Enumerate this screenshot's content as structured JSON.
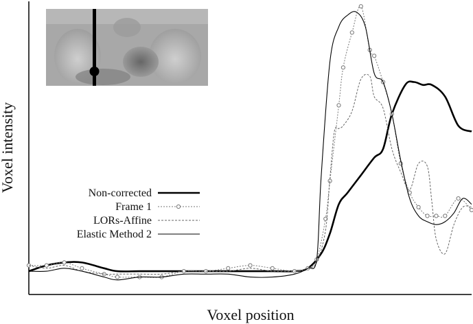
{
  "chart_data": {
    "type": "line",
    "title": "",
    "xlabel": "Voxel position",
    "ylabel": "Voxel intensity",
    "xlim": [
      0,
      100
    ],
    "ylim": [
      0,
      100
    ],
    "grid": false,
    "legend_position": "center-left",
    "inset": "coronal scan image with vertical profile line",
    "series": [
      {
        "name": "Non-corrected",
        "style": "thick-solid",
        "color": "#000000",
        "x": [
          0,
          4,
          8,
          12,
          17,
          20,
          25,
          30,
          35,
          40,
          45,
          50,
          55,
          60,
          63,
          66,
          68,
          70,
          72,
          75,
          78,
          80,
          82,
          85,
          87,
          89,
          91,
          94,
          97,
          100
        ],
        "y": [
          8,
          10,
          11,
          11,
          9,
          8,
          8,
          8,
          8,
          8,
          8,
          8,
          8,
          8,
          9,
          14,
          21,
          31,
          35,
          41,
          47,
          50,
          62,
          72,
          73,
          72,
          72,
          68,
          58,
          56
        ]
      },
      {
        "name": "Frame 1",
        "style": "dotted-circle",
        "color": "#777777",
        "x": [
          0,
          4,
          8,
          12,
          17,
          20,
          25,
          30,
          35,
          40,
          45,
          50,
          55,
          60,
          63,
          65,
          67,
          68,
          70,
          71,
          73,
          75,
          77,
          78,
          80,
          82,
          84,
          86,
          88,
          90,
          92,
          94,
          97,
          100
        ],
        "y": [
          10,
          10,
          11,
          9,
          7,
          6,
          6,
          6,
          8,
          8,
          9,
          10,
          9,
          8,
          9,
          12,
          26,
          39,
          65,
          78,
          90,
          99,
          84,
          82,
          73,
          62,
          45,
          35,
          30,
          27,
          27,
          27,
          33,
          29
        ]
      },
      {
        "name": "LORs-Affine",
        "style": "dashed",
        "color": "#666666",
        "x": [
          0,
          4,
          8,
          12,
          17,
          20,
          25,
          30,
          35,
          40,
          45,
          50,
          55,
          60,
          63,
          65,
          67,
          68,
          69,
          70,
          71,
          73,
          75,
          77,
          78,
          80,
          82,
          84,
          86,
          88,
          90,
          91,
          92,
          94,
          96,
          98,
          100
        ],
        "y": [
          10,
          9,
          10,
          8,
          7,
          7,
          7,
          7,
          8,
          8,
          8,
          9,
          8,
          8,
          9,
          11,
          22,
          40,
          56,
          57,
          58,
          63,
          74,
          75,
          68,
          64,
          50,
          42,
          36,
          45,
          44,
          32,
          19,
          14,
          24,
          30,
          30
        ]
      },
      {
        "name": "Elastic Method 2",
        "style": "thin-solid",
        "color": "#000000",
        "x": [
          0,
          4,
          8,
          12,
          17,
          20,
          25,
          30,
          35,
          40,
          45,
          50,
          55,
          60,
          63,
          65,
          66,
          68,
          70,
          72,
          74,
          76,
          78,
          80,
          82,
          84,
          86,
          88,
          90,
          92,
          94,
          96,
          98,
          100
        ],
        "y": [
          8,
          8,
          9,
          8,
          6,
          5,
          6,
          6,
          7,
          7,
          7,
          6,
          6,
          7,
          9,
          12,
          40,
          80,
          92,
          96,
          97,
          92,
          76,
          73,
          62,
          46,
          33,
          27,
          25,
          24,
          25,
          28,
          33,
          31
        ]
      }
    ]
  }
}
